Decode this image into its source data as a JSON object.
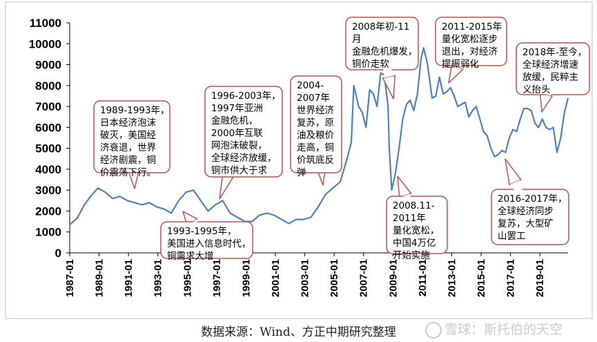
{
  "chart_data": {
    "type": "line",
    "title": "",
    "xlabel": "",
    "ylabel": "",
    "ylim": [
      0,
      11000
    ],
    "xlim": [
      "1987-01",
      "2020-12"
    ],
    "grid": false,
    "line_color": "#4f81bd",
    "y_ticks": [
      "0",
      "1000",
      "2000",
      "3000",
      "4000",
      "5000",
      "6000",
      "7000",
      "8000",
      "9000",
      "10000",
      "11000"
    ],
    "x_ticks": [
      "1987-01",
      "1989-01",
      "1991-01",
      "1993-01",
      "1995-01",
      "1997-01",
      "1999-01",
      "2001-01",
      "2003-01",
      "2005-01",
      "2007-01",
      "2009-01",
      "2011-01",
      "2013-01",
      "2015-01",
      "2017-01",
      "2019-01"
    ],
    "x": [
      "1987-01",
      "1987-07",
      "1988-01",
      "1988-06",
      "1988-12",
      "1989-06",
      "1989-12",
      "1990-06",
      "1990-12",
      "1991-06",
      "1991-12",
      "1992-06",
      "1992-12",
      "1993-06",
      "1993-12",
      "1994-06",
      "1994-12",
      "1995-06",
      "1995-12",
      "1996-06",
      "1996-12",
      "1997-06",
      "1997-12",
      "1998-06",
      "1998-12",
      "1999-06",
      "1999-12",
      "2000-06",
      "2000-12",
      "2001-06",
      "2001-12",
      "2002-06",
      "2002-12",
      "2003-06",
      "2003-12",
      "2004-06",
      "2004-12",
      "2005-06",
      "2005-12",
      "2006-03",
      "2006-05",
      "2006-09",
      "2006-12",
      "2007-03",
      "2007-06",
      "2007-09",
      "2007-12",
      "2008-03",
      "2008-06",
      "2008-09",
      "2008-10",
      "2008-12",
      "2009-03",
      "2009-06",
      "2009-09",
      "2009-12",
      "2010-03",
      "2010-06",
      "2010-09",
      "2010-12",
      "2011-02",
      "2011-05",
      "2011-09",
      "2011-12",
      "2012-03",
      "2012-06",
      "2012-09",
      "2012-12",
      "2013-03",
      "2013-06",
      "2013-09",
      "2013-12",
      "2014-03",
      "2014-06",
      "2014-09",
      "2014-12",
      "2015-03",
      "2015-06",
      "2015-09",
      "2015-12",
      "2016-03",
      "2016-06",
      "2016-09",
      "2016-12",
      "2017-03",
      "2017-06",
      "2017-09",
      "2017-12",
      "2018-03",
      "2018-06",
      "2018-09",
      "2018-12",
      "2019-03",
      "2019-06",
      "2019-09",
      "2019-12",
      "2020-03",
      "2020-06",
      "2020-09",
      "2020-12"
    ],
    "values": [
      1350,
      1650,
      2300,
      2700,
      3100,
      2900,
      2600,
      2700,
      2500,
      2400,
      2300,
      2400,
      2200,
      2100,
      1900,
      2500,
      2900,
      3000,
      2500,
      2000,
      2300,
      2500,
      1900,
      1700,
      1500,
      1500,
      1800,
      1900,
      1800,
      1600,
      1400,
      1600,
      1600,
      1700,
      2200,
      2800,
      3100,
      3400,
      4600,
      5300,
      8000,
      7000,
      6700,
      6000,
      7800,
      7600,
      7000,
      8600,
      8500,
      7000,
      5000,
      3000,
      3800,
      5000,
      6400,
      7100,
      7300,
      6800,
      7600,
      9300,
      9800,
      9100,
      7400,
      7500,
      8400,
      7600,
      7700,
      7900,
      7500,
      7000,
      7100,
      7200,
      6500,
      6800,
      7000,
      6400,
      5800,
      5600,
      5000,
      4600,
      4700,
      4900,
      4800,
      5500,
      5900,
      5800,
      6400,
      6900,
      6900,
      6800,
      6200,
      6000,
      6400,
      6000,
      5900,
      6000,
      4800,
      5500,
      6700,
      7400
    ]
  },
  "annotations": [
    {
      "lines": [
        "1989-1993年，",
        "日本经济泡沫",
        "破灭，美国经",
        "济衰退，世界",
        "经济剧震，铜",
        "价震荡下行。"
      ]
    },
    {
      "lines": [
        "1993-1995年，",
        "美国进入信息时代，",
        "铜需求大增"
      ]
    },
    {
      "lines": [
        "1996-2003年，",
        "1997年亚洲",
        "金融危机，",
        "2000年互联",
        "网泡沫破裂，",
        "全球经济放缓，",
        "铜市供大于求"
      ]
    },
    {
      "lines": [
        "2004-",
        "2007年",
        "世界经济",
        "复苏，原",
        "油及粮价",
        "走高，铜",
        "价筑底反",
        "弹"
      ]
    },
    {
      "lines": [
        "2008年初-11",
        "月",
        "金融危机爆发，",
        "铜价走软"
      ]
    },
    {
      "lines": [
        "2008.11-",
        "2011年",
        "量化宽松，",
        "中国4万亿",
        "开始实施"
      ]
    },
    {
      "lines": [
        "2011-2015年",
        "量化宽松逐步",
        "退出，对经济",
        "提振弱化"
      ]
    },
    {
      "lines": [
        "2016-2017年，",
        "全球经济同步",
        "复苏，大型矿",
        "山罢工"
      ]
    },
    {
      "lines": [
        "2018年-至今，",
        "全球经济增速",
        "放缓，民粹主",
        "义抬头"
      ]
    }
  ],
  "source": "数据来源：Wind、方正中期研究整理",
  "watermark": "雪球：斯托伯的天空"
}
